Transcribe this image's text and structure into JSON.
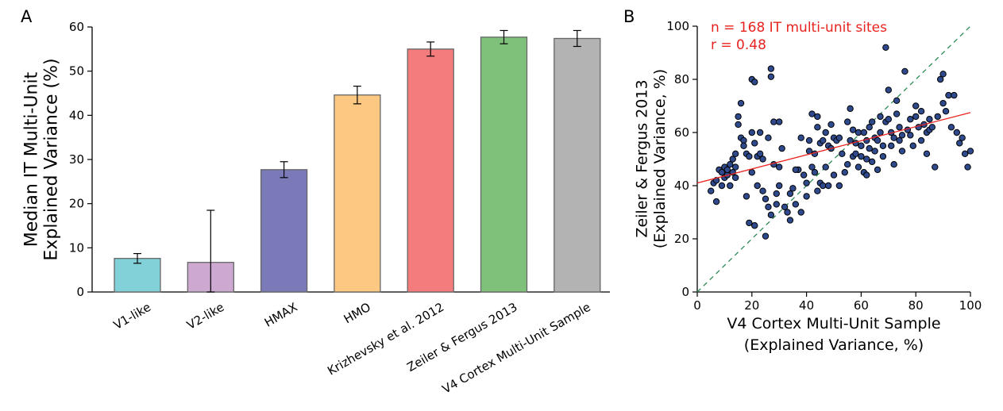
{
  "chart_data": [
    {
      "panel": "A",
      "type": "bar",
      "title": "",
      "xlabel": "",
      "ylabel": [
        "Median IT Multi-Unit",
        "Explained Variance (%)"
      ],
      "ylim": [
        0,
        60
      ],
      "yticks": [
        0,
        10,
        20,
        30,
        40,
        50,
        60
      ],
      "categories": [
        "V1-like",
        "V2-like",
        "HMAX",
        "HMO",
        "Krizhevsky et al. 2012",
        "Zeiler & Fergus 2013",
        "V4 Cortex Multi-Unit Sample"
      ],
      "values": [
        7.6,
        6.7,
        27.7,
        44.6,
        55.0,
        57.7,
        57.4
      ],
      "errors": [
        1.1,
        11.8,
        1.8,
        2.0,
        1.6,
        1.5,
        1.8
      ],
      "colors": [
        "#83d1d8",
        "#cda9d2",
        "#7a7ab8",
        "#fdc882",
        "#f47c7c",
        "#7fc17b",
        "#b3b3b3"
      ],
      "grid": false,
      "legend": "none"
    },
    {
      "panel": "B",
      "type": "scatter",
      "title": "",
      "xlabel": [
        "V4 Cortex Multi-Unit Sample",
        "(Explained Variance, %)"
      ],
      "ylabel": [
        "Zeiler & Fergus 2013",
        "(Explained Variance, %)"
      ],
      "xlim": [
        0,
        100
      ],
      "ylim": [
        0,
        100
      ],
      "xticks": [
        0,
        20,
        40,
        60,
        80,
        100
      ],
      "yticks": [
        0,
        20,
        40,
        60,
        80,
        100
      ],
      "annotations": [
        "n = 168 IT multi-unit sites",
        "r = 0.48"
      ],
      "fit_line": {
        "x": [
          0,
          100
        ],
        "y": [
          41,
          67.5
        ],
        "color": "#e8231f"
      },
      "identity_line": {
        "x": [
          0,
          100
        ],
        "y": [
          0,
          100
        ],
        "color": "#2e8b57",
        "style": "dashed"
      },
      "grid": false,
      "points": [
        [
          5,
          38
        ],
        [
          6,
          41
        ],
        [
          7,
          34
        ],
        [
          7,
          42
        ],
        [
          8,
          46
        ],
        [
          9,
          40
        ],
        [
          9,
          45
        ],
        [
          10,
          43
        ],
        [
          10,
          47
        ],
        [
          11,
          44
        ],
        [
          11,
          46
        ],
        [
          12,
          48
        ],
        [
          12,
          40
        ],
        [
          13,
          45
        ],
        [
          13,
          50
        ],
        [
          14,
          43
        ],
        [
          14,
          52
        ],
        [
          14,
          47
        ],
        [
          15,
          63
        ],
        [
          15,
          66
        ],
        [
          16,
          71
        ],
        [
          16,
          58
        ],
        [
          17,
          57
        ],
        [
          17,
          55
        ],
        [
          18,
          52
        ],
        [
          18,
          36
        ],
        [
          19,
          51
        ],
        [
          19,
          26
        ],
        [
          20,
          80
        ],
        [
          20,
          45
        ],
        [
          20,
          60
        ],
        [
          21,
          79
        ],
        [
          21,
          25
        ],
        [
          21,
          56
        ],
        [
          22,
          51
        ],
        [
          22,
          40
        ],
        [
          23,
          60
        ],
        [
          23,
          52
        ],
        [
          24,
          38
        ],
        [
          24,
          50
        ],
        [
          25,
          21
        ],
        [
          25,
          35
        ],
        [
          26,
          58
        ],
        [
          26,
          32
        ],
        [
          27,
          29
        ],
        [
          27,
          84
        ],
        [
          27,
          81
        ],
        [
          28,
          64
        ],
        [
          28,
          48
        ],
        [
          29,
          33
        ],
        [
          29,
          37
        ],
        [
          30,
          47
        ],
        [
          30,
          64
        ],
        [
          31,
          54
        ],
        [
          32,
          32
        ],
        [
          33,
          30
        ],
        [
          34,
          37
        ],
        [
          34,
          27
        ],
        [
          35,
          39
        ],
        [
          36,
          33
        ],
        [
          37,
          46
        ],
        [
          38,
          30
        ],
        [
          38,
          58
        ],
        [
          39,
          44
        ],
        [
          40,
          41
        ],
        [
          40,
          36
        ],
        [
          41,
          57
        ],
        [
          41,
          53
        ],
        [
          42,
          47
        ],
        [
          42,
          67
        ],
        [
          43,
          52
        ],
        [
          43,
          45
        ],
        [
          44,
          66
        ],
        [
          44,
          62
        ],
        [
          45,
          56
        ],
        [
          45,
          41
        ],
        [
          46,
          57
        ],
        [
          46,
          40
        ],
        [
          47,
          60
        ],
        [
          47,
          47
        ],
        [
          48,
          55
        ],
        [
          48,
          40
        ],
        [
          49,
          63
        ],
        [
          49,
          54
        ],
        [
          50,
          58
        ],
        [
          50,
          44
        ],
        [
          51,
          57
        ],
        [
          52,
          40
        ],
        [
          53,
          52
        ],
        [
          54,
          45
        ],
        [
          55,
          64
        ],
        [
          55,
          48
        ],
        [
          56,
          69
        ],
        [
          56,
          57
        ],
        [
          57,
          61
        ],
        [
          57,
          51
        ],
        [
          58,
          56
        ],
        [
          58,
          52
        ],
        [
          59,
          60
        ],
        [
          59,
          47
        ],
        [
          60,
          55
        ],
        [
          60,
          51
        ],
        [
          61,
          60
        ],
        [
          61,
          45
        ],
        [
          62,
          57
        ],
        [
          62,
          50
        ],
        [
          63,
          62
        ],
        [
          63,
          54
        ],
        [
          64,
          64
        ],
        [
          64,
          49
        ],
        [
          65,
          58
        ],
        [
          65,
          53
        ],
        [
          66,
          57
        ],
        [
          66,
          46
        ],
        [
          67,
          66
        ],
        [
          67,
          60
        ],
        [
          68,
          55
        ],
        [
          68,
          51
        ],
        [
          69,
          64
        ],
        [
          69,
          92
        ],
        [
          70,
          76
        ],
        [
          70,
          65
        ],
        [
          71,
          60
        ],
        [
          71,
          55
        ],
        [
          72,
          58
        ],
        [
          72,
          48
        ],
        [
          73,
          72
        ],
        [
          73,
          67
        ],
        [
          74,
          62
        ],
        [
          74,
          57
        ],
        [
          75,
          59
        ],
        [
          75,
          53
        ],
        [
          76,
          83
        ],
        [
          77,
          61
        ],
        [
          78,
          65
        ],
        [
          78,
          59
        ],
        [
          79,
          55
        ],
        [
          80,
          70
        ],
        [
          80,
          66
        ],
        [
          81,
          62
        ],
        [
          82,
          57
        ],
        [
          82,
          68
        ],
        [
          83,
          63
        ],
        [
          84,
          52
        ],
        [
          84,
          60
        ],
        [
          85,
          65
        ],
        [
          85,
          61
        ],
        [
          86,
          62
        ],
        [
          87,
          47
        ],
        [
          88,
          66
        ],
        [
          89,
          80
        ],
        [
          90,
          71
        ],
        [
          90,
          82
        ],
        [
          91,
          68
        ],
        [
          92,
          74
        ],
        [
          93,
          62
        ],
        [
          94,
          74
        ],
        [
          95,
          60
        ],
        [
          96,
          56
        ],
        [
          97,
          58
        ],
        [
          98,
          52
        ],
        [
          99,
          47
        ],
        [
          100,
          53
        ],
        [
          36,
          46
        ],
        [
          52,
          58
        ],
        [
          62,
          44
        ],
        [
          44,
          38
        ],
        [
          30,
          40
        ]
      ]
    }
  ],
  "panel_labels": [
    "A",
    "B"
  ]
}
